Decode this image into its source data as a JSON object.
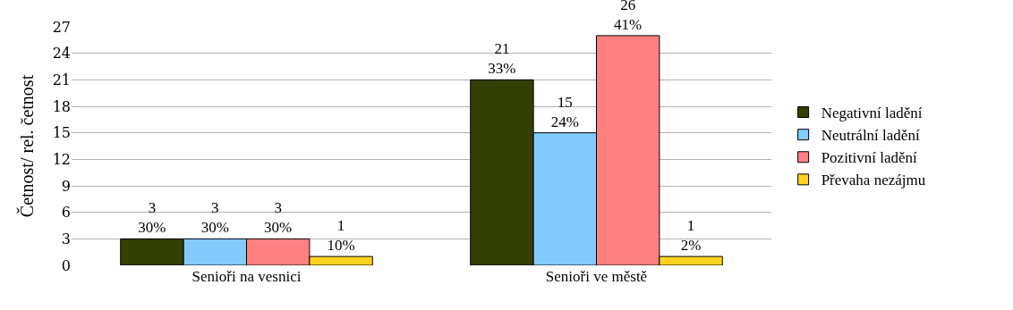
{
  "chart_data": {
    "type": "bar",
    "ylabel": "Četnost/ rel. četnost",
    "categories": [
      "Senioři na vesnici",
      "Senioři ve městě"
    ],
    "series": [
      {
        "name": "Negativní ladění",
        "color": "#333f04",
        "values": [
          3,
          21
        ],
        "value_labels": [
          "3\n30%",
          "21\n33%"
        ]
      },
      {
        "name": "Neutrální ladění",
        "color": "#83caff",
        "values": [
          3,
          15
        ],
        "value_labels": [
          "3\n30%",
          "15\n24%"
        ]
      },
      {
        "name": "Pozitivní ladění",
        "color": "#ff8080",
        "values": [
          3,
          26
        ],
        "value_labels": [
          "3\n30%",
          "26\n41%"
        ]
      },
      {
        "name": "Převaha nezájmu",
        "color": "#ffd320",
        "values": [
          1,
          1
        ],
        "value_labels": [
          "1\n10%",
          "1\n2%"
        ]
      }
    ],
    "ylim": [
      0,
      27
    ],
    "yticks": [
      0,
      3,
      6,
      9,
      12,
      15,
      18,
      21,
      24,
      27
    ],
    "grid": "y",
    "legend": "right"
  }
}
